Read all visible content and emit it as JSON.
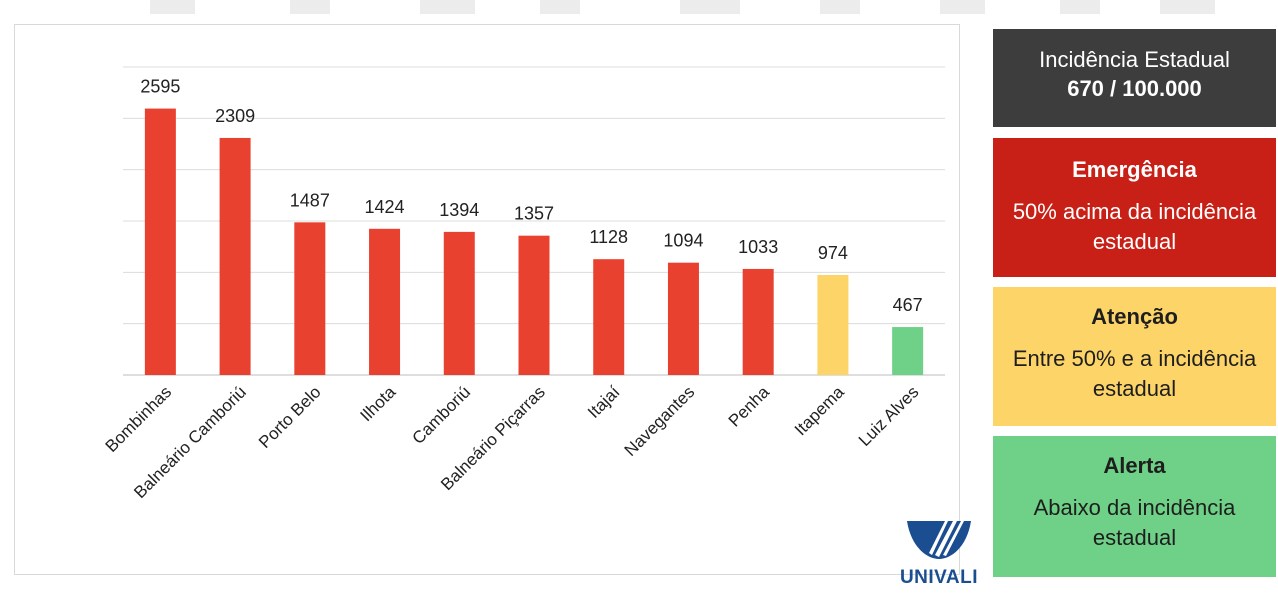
{
  "chart_data": {
    "type": "bar",
    "categories": [
      "Bombinhas",
      "Balneário Camboriú",
      "Porto Belo",
      "Ilhota",
      "Camboriú",
      "Balneário Piçarras",
      "Itajaí",
      "Navegantes",
      "Penha",
      "Itapema",
      "Luiz Alves"
    ],
    "values": [
      2595,
      2309,
      1487,
      1424,
      1394,
      1357,
      1128,
      1094,
      1033,
      974,
      467
    ],
    "bar_colors": [
      "#e8412f",
      "#e8412f",
      "#e8412f",
      "#e8412f",
      "#e8412f",
      "#e8412f",
      "#e8412f",
      "#e8412f",
      "#e8412f",
      "#fdd468",
      "#6fd187"
    ],
    "ylim": [
      0,
      3000
    ],
    "grid": true,
    "show_y_axis_labels": false
  },
  "legend": {
    "state": {
      "line1": "Incidência Estadual",
      "line2": "670 / 100.000",
      "color": "#3d3d3d"
    },
    "emergency": {
      "title": "Emergência",
      "description": "50% acima da incidência estadual",
      "color": "#c82017"
    },
    "attention": {
      "title": "Atenção",
      "description": "Entre 50% e a incidência estadual",
      "color": "#fdd468"
    },
    "alert": {
      "title": "Alerta",
      "description": "Abaixo da incidência estadual",
      "color": "#6fd187"
    }
  },
  "logo": {
    "text": "UNIVALI",
    "icon": "univali-logo-icon"
  }
}
